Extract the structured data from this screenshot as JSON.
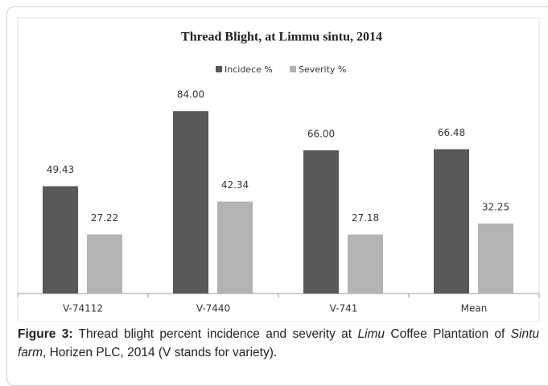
{
  "chart_data": {
    "type": "bar",
    "title": "Thread Blight, at Limmu sintu, 2014",
    "categories": [
      "V-74112",
      "V-7440",
      "V-741",
      "Mean"
    ],
    "series": [
      {
        "name": "Incidece %",
        "color": "#595959",
        "values": [
          49.43,
          84.0,
          66.0,
          66.48
        ],
        "value_labels": [
          "49.43",
          "84.00",
          "66.00",
          "66.48"
        ]
      },
      {
        "name": "Severity %",
        "color": "#b3b3b3",
        "values": [
          27.22,
          42.34,
          27.18,
          32.25
        ],
        "value_labels": [
          "27.22",
          "42.34",
          "27.18",
          "32.25"
        ]
      }
    ],
    "legend": "top"
  },
  "caption": {
    "label": "Figure 3:",
    "parts": [
      " Thread blight percent incidence and severity at ",
      "Limu",
      " Coffee Plantation of ",
      "Sintu farm",
      ", Horizen PLC, 2014 (V stands for variety)."
    ]
  }
}
